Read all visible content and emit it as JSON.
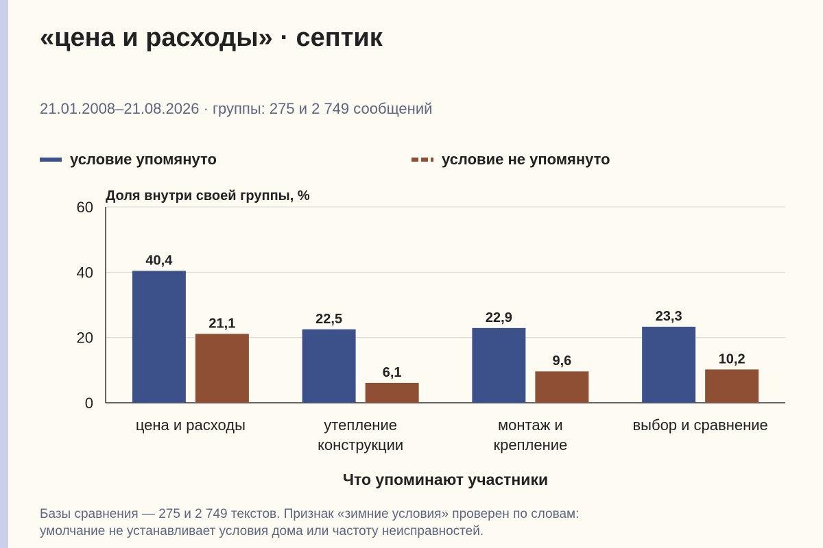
{
  "title": "«цена и расходы» · септик",
  "subtitle": "21.01.2008–21.08.2026 · группы: 275 и 2 749 сообщений",
  "legend": [
    {
      "label": "условие упомянуто",
      "color": "#3c5189",
      "style": "solid"
    },
    {
      "label": "условие не упомянуто",
      "color": "#8e4f35",
      "style": "dashed"
    }
  ],
  "chart_data": {
    "type": "bar",
    "title": "«цена и расходы» · септик",
    "ylabel": "Доля внутри своей группы, %",
    "xlabel": "Что упоминают участники",
    "ylim": [
      0,
      60
    ],
    "yticks": [
      0,
      20,
      40,
      60
    ],
    "grid": true,
    "legend_position": "top",
    "categories": [
      [
        "цена и расходы"
      ],
      [
        "утепление",
        "конструкции"
      ],
      [
        "монтаж и",
        "крепление"
      ],
      [
        "выбор и сравнение"
      ]
    ],
    "series": [
      {
        "name": "условие упомянуто",
        "color": "#3c5189",
        "values": [
          40.4,
          22.5,
          22.9,
          23.3
        ],
        "labels": [
          "40,4",
          "22,5",
          "22,9",
          "23,3"
        ]
      },
      {
        "name": "условие не упомянуто",
        "color": "#8e4f35",
        "values": [
          21.1,
          6.1,
          9.6,
          10.2
        ],
        "labels": [
          "21,1",
          "6,1",
          "9,6",
          "10,2"
        ]
      }
    ]
  },
  "footnote": [
    "Базы сравнения — 275 и 2 749 текстов. Признак «зимние условия» проверен по словам:",
    "умолчание не устанавливает условия дома или частоту неисправностей."
  ]
}
